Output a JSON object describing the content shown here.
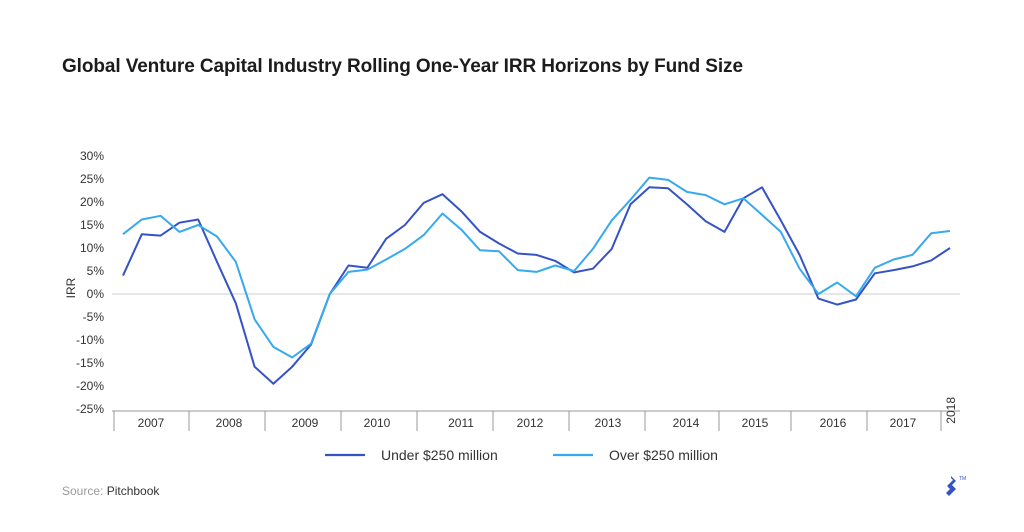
{
  "title": "Global Venture Capital Industry Rolling One-Year IRR Horizons by Fund Size",
  "source": {
    "prefix": "Source: ",
    "name": "Pitchbook"
  },
  "colors": {
    "under": "#3553c6",
    "over": "#37a9ef",
    "zero_line": "#cccccc",
    "axis": "#999999"
  },
  "chart_data": {
    "type": "line",
    "title": "Global Venture Capital Industry Rolling One-Year IRR Horizons by Fund Size",
    "xlabel": "",
    "ylabel": "IRR",
    "ylim": [
      -25,
      30
    ],
    "yticks": [
      "30%",
      "25%",
      "20%",
      "15%",
      "10%",
      "5%",
      "0%",
      "-5%",
      "-10%",
      "-15%",
      "-20%",
      "-25%"
    ],
    "year_labels": [
      "2007",
      "2008",
      "2009",
      "2010",
      "2011",
      "2012",
      "2013",
      "2014",
      "2015",
      "2016",
      "2017",
      "2018"
    ],
    "x": [
      "2006Q4",
      "2007Q1",
      "2007Q2",
      "2007Q3",
      "2007Q4",
      "2008Q1",
      "2008Q2",
      "2008Q3",
      "2008Q4",
      "2009Q1",
      "2009Q2",
      "2009Q3",
      "2009Q4",
      "2010Q1",
      "2010Q2",
      "2010Q3",
      "2010Q4",
      "2011Q1",
      "2011Q2",
      "2011Q3",
      "2011Q4",
      "2012Q1",
      "2012Q2",
      "2012Q3",
      "2012Q4",
      "2013Q1",
      "2013Q2",
      "2013Q3",
      "2013Q4",
      "2014Q1",
      "2014Q2",
      "2014Q3",
      "2014Q4",
      "2015Q1",
      "2015Q2",
      "2015Q3",
      "2015Q4",
      "2016Q1",
      "2016Q2",
      "2016Q3",
      "2016Q4",
      "2017Q1",
      "2017Q2",
      "2017Q3",
      "2017Q4"
    ],
    "series": [
      {
        "name": "Under $250 million",
        "values": [
          4,
          13,
          12.7,
          15.5,
          16.2,
          7,
          -2,
          -15.8,
          -19.5,
          -15.8,
          -11,
          0,
          6.2,
          5.7,
          12,
          15,
          19.8,
          21.7,
          18,
          13.5,
          11,
          8.8,
          8.5,
          7.2,
          4.7,
          5.5,
          9.8,
          19.5,
          23.2,
          23,
          19.5,
          15.8,
          13.5,
          20.8,
          23.2,
          16,
          8.5,
          -1,
          -2.3,
          -1.2,
          4.5,
          5.2,
          6,
          7.3,
          10
        ]
      },
      {
        "name": "Over $250 million",
        "values": [
          13,
          16.2,
          17,
          13.5,
          15,
          12.5,
          7,
          -5.5,
          -11.5,
          -13.8,
          -10.8,
          0,
          4.8,
          5.3,
          7.5,
          9.8,
          12.8,
          17.5,
          14,
          9.5,
          9.3,
          5.2,
          4.8,
          6.2,
          5,
          9.8,
          16,
          20.5,
          25.3,
          24.8,
          22.2,
          21.5,
          19.5,
          20.8,
          17.2,
          13.5,
          5.5,
          0,
          2.5,
          -0.5,
          5.7,
          7.5,
          8.5,
          13.2,
          13.7
        ]
      }
    ],
    "grid": false,
    "legend_position": "bottom"
  }
}
